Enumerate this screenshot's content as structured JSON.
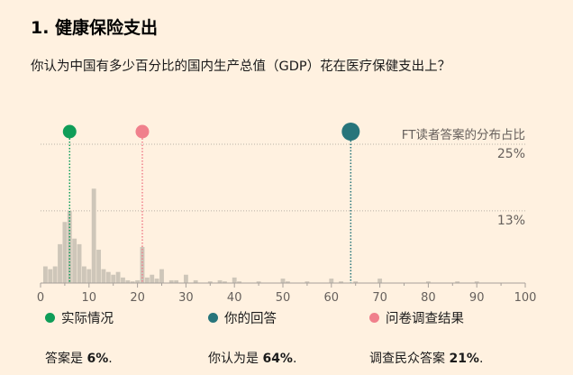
{
  "title": "1. 健康保险支出",
  "question": "你认为中国有多少百分比的国内生产总值（GDP）花在医疗保健支出上？",
  "colors": {
    "actual": "#0f9d58",
    "yours": "#27757b",
    "survey": "#f0808c",
    "bars": "#cec6b9"
  },
  "legend": {
    "actual": "实际情况",
    "yours": "你的回答",
    "survey": "问卷调查结果"
  },
  "answers": {
    "actual_prefix": "答案是 ",
    "actual_value": "6%",
    "actual_suffix": ".",
    "yours_prefix": "你认为是 ",
    "yours_value": "64%",
    "yours_suffix": ".",
    "survey_prefix": "调查民众答案 ",
    "survey_value": "21%",
    "survey_suffix": "."
  },
  "chart_data": {
    "type": "bar",
    "series_label": "FT读者答案的分布占比",
    "xlim": [
      0,
      100
    ],
    "x_ticks": [
      0,
      10,
      20,
      30,
      40,
      50,
      60,
      70,
      80,
      90,
      100
    ],
    "y_grid": [
      {
        "value": 13,
        "label": "13%"
      },
      {
        "value": 25,
        "label": "25%"
      }
    ],
    "ylim": [
      0,
      25
    ],
    "x": [
      1,
      2,
      3,
      4,
      5,
      6,
      7,
      8,
      9,
      10,
      11,
      12,
      13,
      14,
      15,
      16,
      17,
      18,
      19,
      20,
      21,
      22,
      23,
      24,
      25,
      27,
      28,
      30,
      32,
      35,
      37,
      38,
      40,
      41,
      45,
      50,
      51,
      55,
      60,
      62,
      65,
      70,
      80,
      86,
      90
    ],
    "values": [
      3,
      2.5,
      3,
      7,
      11,
      13,
      8,
      7,
      3,
      2.5,
      17,
      6,
      2.5,
      2,
      1.5,
      2,
      1,
      0.5,
      0.3,
      0.5,
      6.5,
      1,
      1.5,
      0.8,
      2.5,
      0.5,
      0.5,
      1.5,
      0.5,
      0.3,
      0.5,
      0.3,
      1,
      0.3,
      0.3,
      0.8,
      0.3,
      0.3,
      0.8,
      0.3,
      0.3,
      0.8,
      0.3,
      0.3,
      0.3
    ],
    "markers": {
      "actual": 6,
      "yours": 64,
      "survey": 21
    }
  }
}
